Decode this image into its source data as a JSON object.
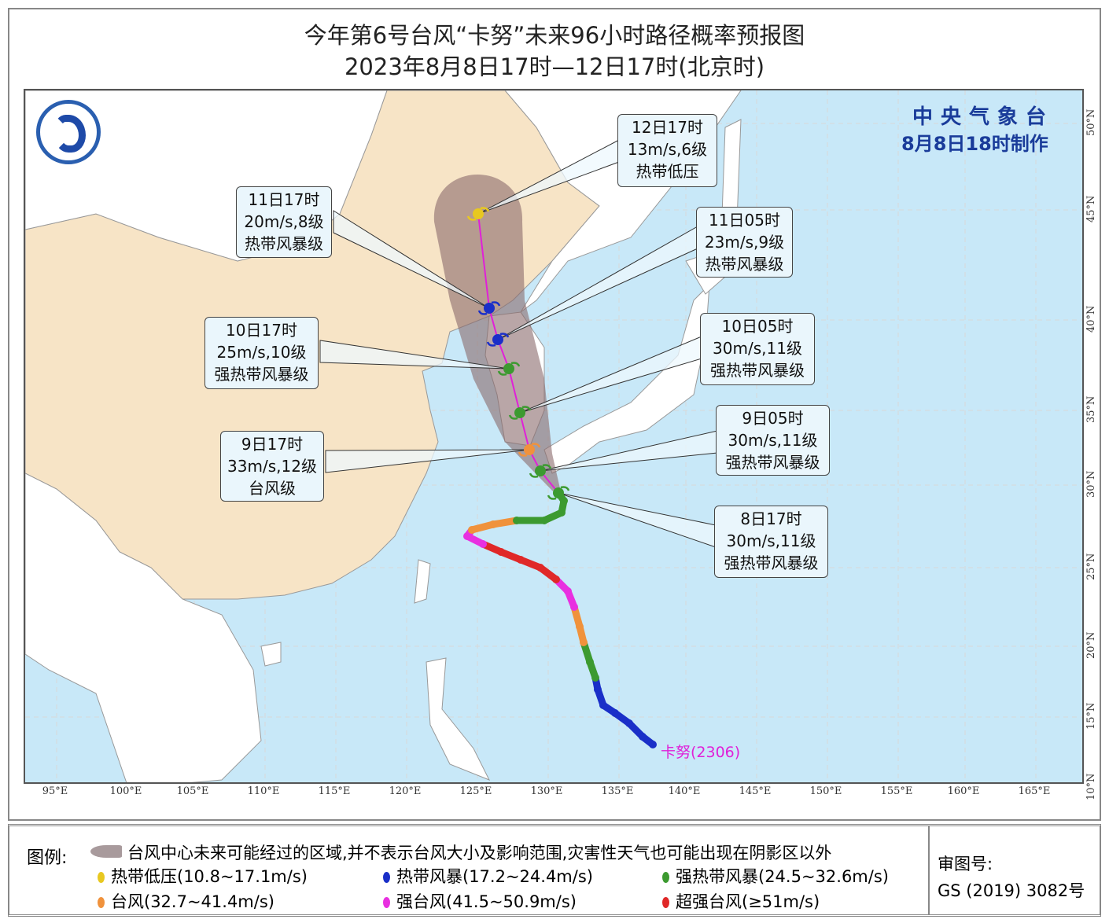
{
  "header": {
    "title": "今年第6号台风“卡努”未来96小时路径概率预报图",
    "subtitle": "2023年8月8日17时—12日17时(北京时)"
  },
  "agency": {
    "name": "中央气象台",
    "issued": "8月8日18时制作"
  },
  "storm": {
    "label": "卡努(2306)",
    "color": "#e020d8"
  },
  "axes": {
    "lon_ticks": [
      "95°E",
      "100°E",
      "105°E",
      "110°E",
      "115°E",
      "120°E",
      "125°E",
      "130°E",
      "135°E",
      "140°E",
      "145°E",
      "150°E",
      "155°E",
      "160°E",
      "165°E"
    ],
    "lat_ticks": [
      "50°N",
      "45°N",
      "40°N",
      "35°N",
      "30°N",
      "25°N",
      "20°N",
      "15°N",
      "10°N"
    ]
  },
  "forecast_points": [
    {
      "time": "8日17时",
      "wind": "30m/s,11级",
      "level": "强热带风暴级",
      "category": "strong_tropical_storm"
    },
    {
      "time": "9日05时",
      "wind": "30m/s,11级",
      "level": "强热带风暴级",
      "category": "strong_tropical_storm"
    },
    {
      "time": "9日17时",
      "wind": "33m/s,12级",
      "level": "台风级",
      "category": "typhoon"
    },
    {
      "time": "10日05时",
      "wind": "30m/s,11级",
      "level": "强热带风暴级",
      "category": "strong_tropical_storm"
    },
    {
      "time": "10日17时",
      "wind": "25m/s,10级",
      "level": "强热带风暴级",
      "category": "strong_tropical_storm"
    },
    {
      "time": "11日05时",
      "wind": "23m/s,9级",
      "level": "热带风暴级",
      "category": "tropical_storm"
    },
    {
      "time": "11日17时",
      "wind": "20m/s,8级",
      "level": "热带风暴级",
      "category": "tropical_storm"
    },
    {
      "time": "12日17时",
      "wind": "13m/s,6级",
      "level": "热带低压",
      "category": "tropical_depression"
    }
  ],
  "legend": {
    "heading": "图例:",
    "cone": "台风中心未来可能经过的区域,并不表示台风大小及影响范围,灾害性天气也可能出现在阴影区以外",
    "categories": [
      {
        "key": "tropical_depression",
        "label": "热带低压(10.8~17.1m/s)",
        "color": "#e8c820"
      },
      {
        "key": "tropical_storm",
        "label": "热带风暴(17.2~24.4m/s)",
        "color": "#1a2fc8"
      },
      {
        "key": "strong_tropical_storm",
        "label": "强热带风暴(24.5~32.6m/s)",
        "color": "#3c9a30"
      },
      {
        "key": "typhoon",
        "label": "台风(32.7~41.4m/s)",
        "color": "#f0923c"
      },
      {
        "key": "strong_typhoon",
        "label": "强台风(41.5~50.9m/s)",
        "color": "#e830e0"
      },
      {
        "key": "super_typhoon",
        "label": "超强台风(≥51m/s)",
        "color": "#e02828"
      }
    ],
    "review_label": "审图号:",
    "review_number": "GS (2019) 3082号"
  },
  "colors": {
    "ocean": "#c8e8f8",
    "china_land": "#f7e4c6",
    "other_land": "#ffffff",
    "cone": "#8a6a6c",
    "track_line": "#e020d8",
    "label_blue": "#1a3c9a"
  }
}
